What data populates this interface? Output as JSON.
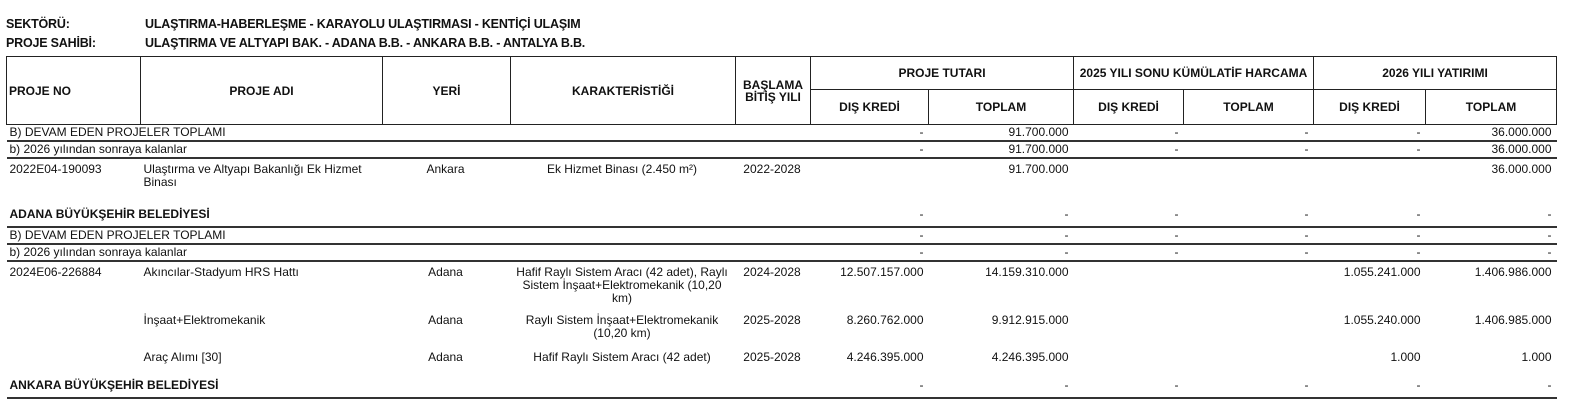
{
  "meta": {
    "sector_label": "SEKTÖRÜ:",
    "sector_value": "ULAŞTIRMA-HABERLEŞME - KARAYOLU ULAŞTIRMASI - KENTİÇİ ULAŞIM",
    "owner_label": "PROJE SAHİBİ:",
    "owner_value": "ULAŞTIRMA VE ALTYAPI BAK. - ADANA B.B. - ANKARA B.B. - ANTALYA B.B."
  },
  "headers": {
    "proje_no": "PROJE NO",
    "proje_adi": "PROJE ADI",
    "yeri": "YERİ",
    "karakteristigi": "KARAKTERİSTİĞİ",
    "baslama": "BAŞLAMA BİTİŞ YILI",
    "proje_tutari": "PROJE TUTARI",
    "kumulatif": "2025 YILI SONU KÜMÜLATİF HARCAMA",
    "yatirim": "2026 YILI YATIRIMI",
    "dis_kredi": "DIŞ KREDİ",
    "toplam": "TOPLAM"
  },
  "rows": [
    {
      "type": "sum",
      "label": "B) DEVAM EDEN PROJELER TOPLAMI",
      "values": [
        "-",
        "91.700.000",
        "-",
        "-",
        "-",
        "36.000.000"
      ]
    },
    {
      "type": "sum",
      "label": "b) 2026 yılından sonraya kalanlar",
      "values": [
        "-",
        "91.700.000",
        "-",
        "-",
        "-",
        "36.000.000"
      ]
    },
    {
      "type": "proj",
      "no": "2022E04-190093",
      "name": "Ulaştırma ve Altyapı Bakanlığı Ek Hizmet Binası",
      "place": "Ankara",
      "char": "Ek Hizmet Binası (2.450 m²)",
      "years": "2022-2028",
      "values": [
        "",
        "91.700.000",
        "",
        "",
        "",
        "36.000.000"
      ],
      "h": 42
    },
    {
      "type": "grp",
      "label": "ADANA BÜYÜKŞEHİR BELEDİYESİ",
      "values": [
        "-",
        "-",
        "-",
        "-",
        "-",
        "-"
      ]
    },
    {
      "type": "sum",
      "label": "B) DEVAM EDEN PROJELER TOPLAMI",
      "values": [
        "-",
        "-",
        "-",
        "-",
        "-",
        "-"
      ]
    },
    {
      "type": "sum",
      "label": "b) 2026 yılından sonraya kalanlar",
      "values": [
        "-",
        "-",
        "-",
        "-",
        "-",
        "-"
      ]
    },
    {
      "type": "proj",
      "no": "2024E06-226884",
      "name": "Akıncılar-Stadyum HRS Hattı",
      "place": "Adana",
      "char": "Hafif Raylı Sistem Aracı (42 adet), Raylı Sistem İnşaat+Elektromekanik (10,20 km)",
      "years": "2024-2028",
      "values": [
        "12.507.157.000",
        "14.159.310.000",
        "",
        "",
        "1.055.241.000",
        "1.406.986.000"
      ],
      "h": 49
    },
    {
      "type": "proj",
      "no": "",
      "name": "İnşaat+Elektromekanik",
      "place": "Adana",
      "char": "Raylı Sistem İnşaat+Elektromekanik (10,20 km)",
      "years": "2025-2028",
      "values": [
        "8.260.762.000",
        "9.912.915.000",
        "",
        "",
        "1.055.240.000",
        "1.406.985.000"
      ],
      "h": 37
    },
    {
      "type": "proj",
      "no": "",
      "name": "Araç Alımı [30]",
      "place": "Adana",
      "char": "Hafif Raylı Sistem Aracı (42 adet)",
      "years": "2025-2028",
      "values": [
        "4.246.395.000",
        "4.246.395.000",
        "",
        "",
        "1.000",
        "1.000"
      ],
      "h": 23
    },
    {
      "type": "grp",
      "label": "ANKARA BÜYÜKŞEHİR BELEDİYESİ",
      "values": [
        "-",
        "-",
        "-",
        "-",
        "-",
        "-"
      ]
    }
  ]
}
